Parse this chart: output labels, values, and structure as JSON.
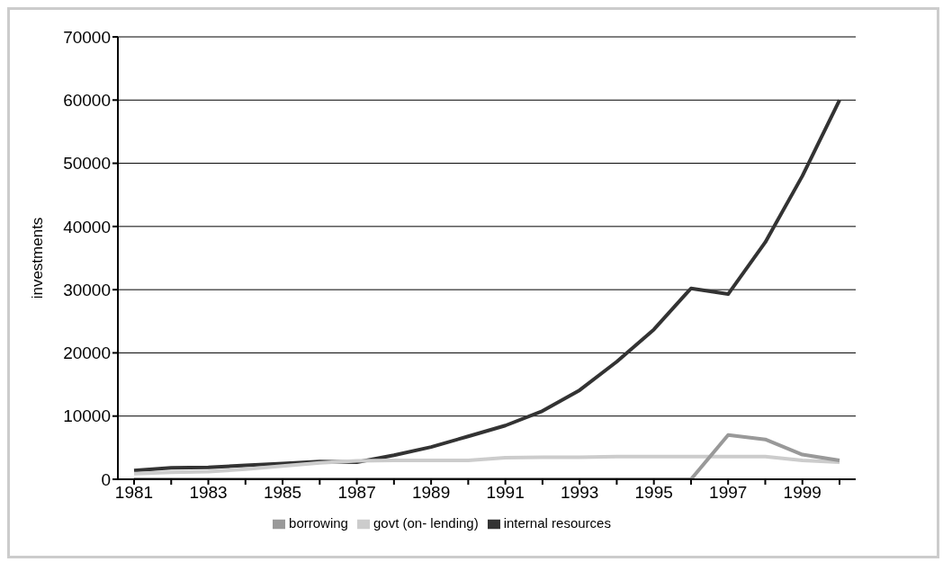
{
  "chart_data": {
    "type": "line",
    "ylabel": "investments",
    "categories": [
      "1981",
      null,
      "1983",
      null,
      "1985",
      null,
      "1987",
      null,
      "1989",
      null,
      "1991",
      null,
      "1993",
      null,
      "1995",
      null,
      "1997",
      null,
      "1999",
      null
    ],
    "series": [
      {
        "name": "internal resources",
        "color": "#333333",
        "values": [
          1400,
          1800,
          1900,
          2200,
          2500,
          2800,
          2700,
          3800,
          5100,
          6800,
          8500,
          10800,
          14100,
          18600,
          23700,
          30200,
          29300,
          37500,
          48000,
          60000
        ]
      },
      {
        "name": "govt (on- lending)",
        "color": "#cccccc",
        "values": [
          900,
          1100,
          1200,
          1600,
          2100,
          2600,
          2900,
          3000,
          3000,
          3000,
          3400,
          3500,
          3500,
          3600,
          3600,
          3600,
          3600,
          3600,
          3000,
          2700
        ]
      },
      {
        "name": "borrowing",
        "color": "#999999",
        "values": [
          0,
          0,
          0,
          0,
          0,
          0,
          0,
          0,
          0,
          0,
          0,
          0,
          0,
          0,
          0,
          0,
          7000,
          6300,
          3900,
          3000
        ]
      }
    ],
    "ylim": [
      0,
      70000
    ],
    "yticks": [
      0,
      10000,
      20000,
      30000,
      40000,
      50000,
      60000,
      70000
    ],
    "grid": "y",
    "legend": "bottom",
    "marker": "none",
    "line_style": "solid"
  }
}
